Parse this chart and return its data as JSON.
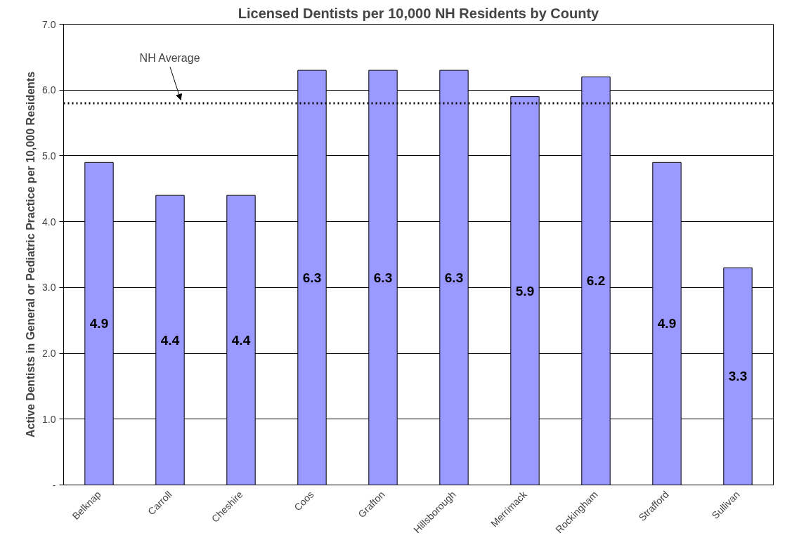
{
  "chart_data": {
    "type": "bar",
    "title": "Licensed Dentists per 10,000 NH Residents by County",
    "ylabel": "Active Dentists in General or Pediatric Practice per 10,000 Residents",
    "categories": [
      "Belknap",
      "Carroll",
      "Cheshire",
      "Coos",
      "Grafton",
      "Hillsborough",
      "Merrimack",
      "Rockingham",
      "Strafford",
      "Sullivan"
    ],
    "values": [
      4.9,
      4.4,
      4.4,
      6.3,
      6.3,
      6.3,
      5.9,
      6.2,
      4.9,
      3.3
    ],
    "color": "#9999ff",
    "data_labels": true,
    "ylim": [
      0,
      7
    ],
    "yticks": [
      {
        "value": 0,
        "label": "-"
      },
      {
        "value": 1,
        "label": "1.0"
      },
      {
        "value": 2,
        "label": "2.0"
      },
      {
        "value": 3,
        "label": "3.0"
      },
      {
        "value": 4,
        "label": "4.0"
      },
      {
        "value": 5,
        "label": "5.0"
      },
      {
        "value": 6,
        "label": "6.0"
      },
      {
        "value": 7,
        "label": "7.0"
      }
    ],
    "grid": "y",
    "ref_lines": [
      {
        "axis": "y",
        "value": 5.8,
        "label": "NH Average",
        "line_style": "dotted",
        "color": "#000000"
      }
    ]
  }
}
